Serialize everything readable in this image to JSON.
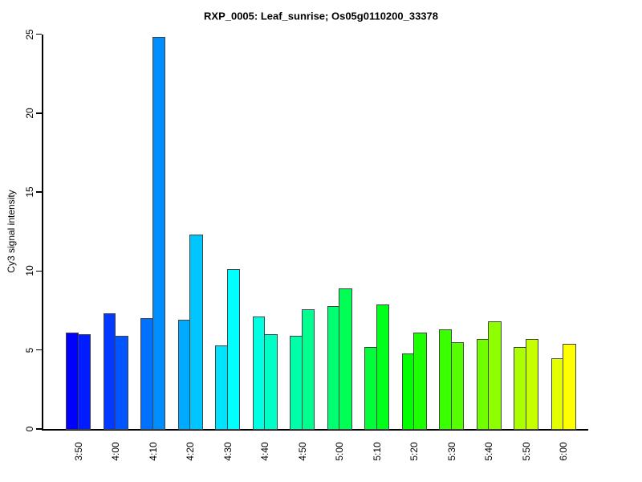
{
  "chart_data": {
    "type": "bar",
    "title": "RXP_0005: Leaf_sunrise; Os05g0110200_33378",
    "xlabel": "",
    "ylabel": "Cy3 signal intensity",
    "categories": [
      "3:50",
      "4:00",
      "4:10",
      "4:20",
      "4:30",
      "4:40",
      "4:50",
      "5:00",
      "5:10",
      "5:20",
      "5:30",
      "5:40",
      "5:50",
      "6:00"
    ],
    "series": [
      {
        "name": "bar-1",
        "values": [
          6.1,
          7.3,
          7.0,
          6.9,
          5.3,
          7.1,
          5.9,
          7.8,
          5.2,
          4.8,
          6.3,
          5.7,
          5.2,
          4.5
        ]
      },
      {
        "name": "bar-2",
        "values": [
          6.0,
          5.9,
          24.8,
          12.3,
          10.1,
          6.0,
          7.6,
          8.9,
          7.9,
          6.1,
          5.5,
          6.8,
          5.7,
          5.4
        ]
      }
    ],
    "bar_colors": [
      [
        "#0000FF",
        "#001CFF"
      ],
      [
        "#0039FF",
        "#0055FF"
      ],
      [
        "#0071FF",
        "#008EFF"
      ],
      [
        "#00AAFF",
        "#00C6FF"
      ],
      [
        "#00E3FF",
        "#00FFFF"
      ],
      [
        "#00FFE3",
        "#00FFC6"
      ],
      [
        "#00FFAA",
        "#00FF8E"
      ],
      [
        "#00FF71",
        "#00FF55"
      ],
      [
        "#00FF39",
        "#00FF1C"
      ],
      [
        "#00FF00",
        "#1CFF00"
      ],
      [
        "#39FF00",
        "#55FF00"
      ],
      [
        "#71FF00",
        "#8EFF00"
      ],
      [
        "#AAFF00",
        "#C6FF00"
      ],
      [
        "#E3FF00",
        "#FFFF00"
      ]
    ],
    "yticks": [
      "0",
      "5",
      "10",
      "15",
      "20",
      "25"
    ],
    "ylim": [
      0,
      25
    ],
    "grid": false,
    "legend_position": "none",
    "bar_border_color": "#444444",
    "axis_color": "#000000",
    "background_color": "#FFFFFF"
  }
}
